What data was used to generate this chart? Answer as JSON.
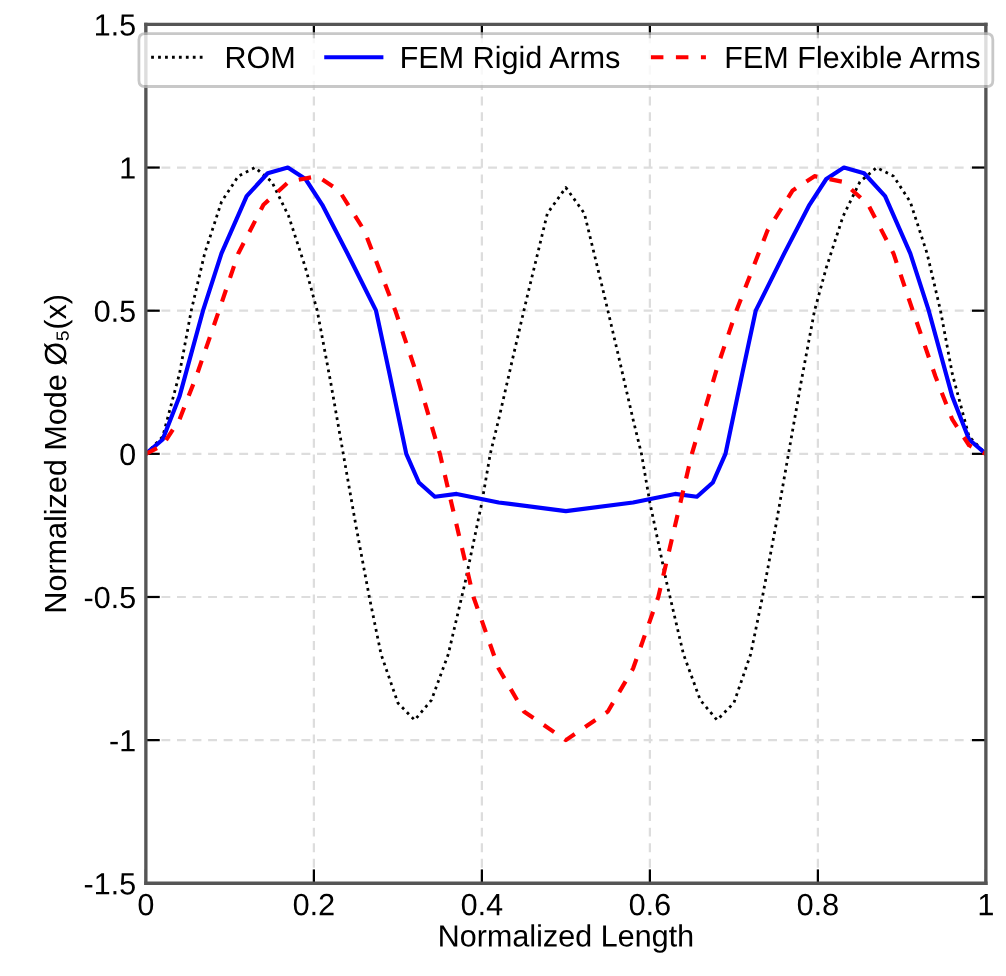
{
  "chart_data": {
    "type": "line",
    "xlabel": "Normalized Length",
    "ylabel": "Normalized Mode Ø₅(x)",
    "xlim": [
      0,
      1
    ],
    "xticks": [
      0,
      0.2,
      0.4,
      0.6,
      0.8,
      1
    ],
    "ylim": [
      -1.5,
      1.5
    ],
    "yticks": [
      -1.5,
      -1,
      -0.5,
      0,
      0.5,
      1,
      1.5
    ],
    "grid": true,
    "legend": "top",
    "marker": "none",
    "series": [
      {
        "name": "ROM",
        "color": "#000000",
        "line_style": "dotted",
        "x": [
          0,
          0.02,
          0.04,
          0.054,
          0.07,
          0.09,
          0.11,
          0.13,
          0.15,
          0.17,
          0.19,
          0.204,
          0.22,
          0.235,
          0.25,
          0.266,
          0.28,
          0.3,
          0.32,
          0.34,
          0.36,
          0.38,
          0.4,
          0.41,
          0.42,
          0.438,
          0.454,
          0.478,
          0.5,
          0.522,
          0.546,
          0.562,
          0.58,
          0.59,
          0.6,
          0.62,
          0.64,
          0.66,
          0.68,
          0.7,
          0.72,
          0.734,
          0.75,
          0.765,
          0.78,
          0.796,
          0.81,
          0.83,
          0.85,
          0.87,
          0.89,
          0.91,
          0.93,
          0.946,
          0.96,
          0.98,
          1
        ],
        "values": [
          0,
          0.06,
          0.28,
          0.5,
          0.7,
          0.88,
          0.97,
          1.0,
          0.95,
          0.83,
          0.65,
          0.5,
          0.25,
          0,
          -0.25,
          -0.5,
          -0.7,
          -0.87,
          -0.93,
          -0.86,
          -0.7,
          -0.45,
          -0.17,
          0,
          0.12,
          0.35,
          0.55,
          0.84,
          0.93,
          0.84,
          0.55,
          0.35,
          0.12,
          0,
          -0.17,
          -0.45,
          -0.7,
          -0.86,
          -0.93,
          -0.87,
          -0.7,
          -0.5,
          -0.25,
          0,
          0.25,
          0.5,
          0.65,
          0.83,
          0.95,
          1.0,
          0.97,
          0.88,
          0.7,
          0.5,
          0.28,
          0.06,
          0
        ]
      },
      {
        "name": "FEM Rigid Arms",
        "color": "#0000ff",
        "line_style": "solid",
        "x": [
          0,
          0.02,
          0.04,
          0.068,
          0.09,
          0.12,
          0.145,
          0.169,
          0.19,
          0.21,
          0.24,
          0.274,
          0.29,
          0.31,
          0.325,
          0.344,
          0.37,
          0.42,
          0.5,
          0.58,
          0.63,
          0.656,
          0.675,
          0.69,
          0.71,
          0.726,
          0.76,
          0.79,
          0.81,
          0.831,
          0.855,
          0.88,
          0.91,
          0.932,
          0.96,
          0.98,
          1
        ],
        "values": [
          0,
          0.05,
          0.2,
          0.5,
          0.7,
          0.9,
          0.98,
          1.0,
          0.96,
          0.87,
          0.7,
          0.5,
          0.28,
          0,
          -0.1,
          -0.15,
          -0.14,
          -0.17,
          -0.2,
          -0.17,
          -0.14,
          -0.15,
          -0.1,
          0,
          0.28,
          0.5,
          0.7,
          0.87,
          0.96,
          1.0,
          0.98,
          0.9,
          0.7,
          0.5,
          0.2,
          0.05,
          0
        ]
      },
      {
        "name": "FEM Flexible Arms",
        "color": "#ff0000",
        "line_style": "dashed",
        "x": [
          0,
          0.02,
          0.04,
          0.06,
          0.087,
          0.11,
          0.14,
          0.17,
          0.204,
          0.23,
          0.26,
          0.297,
          0.32,
          0.35,
          0.39,
          0.42,
          0.45,
          0.5,
          0.55,
          0.58,
          0.61,
          0.65,
          0.68,
          0.703,
          0.74,
          0.77,
          0.796,
          0.83,
          0.86,
          0.89,
          0.913,
          0.94,
          0.96,
          0.98,
          1
        ],
        "values": [
          0,
          0.03,
          0.12,
          0.27,
          0.5,
          0.7,
          0.87,
          0.95,
          0.97,
          0.92,
          0.78,
          0.5,
          0.3,
          0,
          -0.5,
          -0.75,
          -0.9,
          -1,
          -0.9,
          -0.75,
          -0.5,
          0,
          0.3,
          0.5,
          0.78,
          0.92,
          0.97,
          0.95,
          0.87,
          0.7,
          0.5,
          0.27,
          0.12,
          0.03,
          0
        ]
      }
    ]
  }
}
